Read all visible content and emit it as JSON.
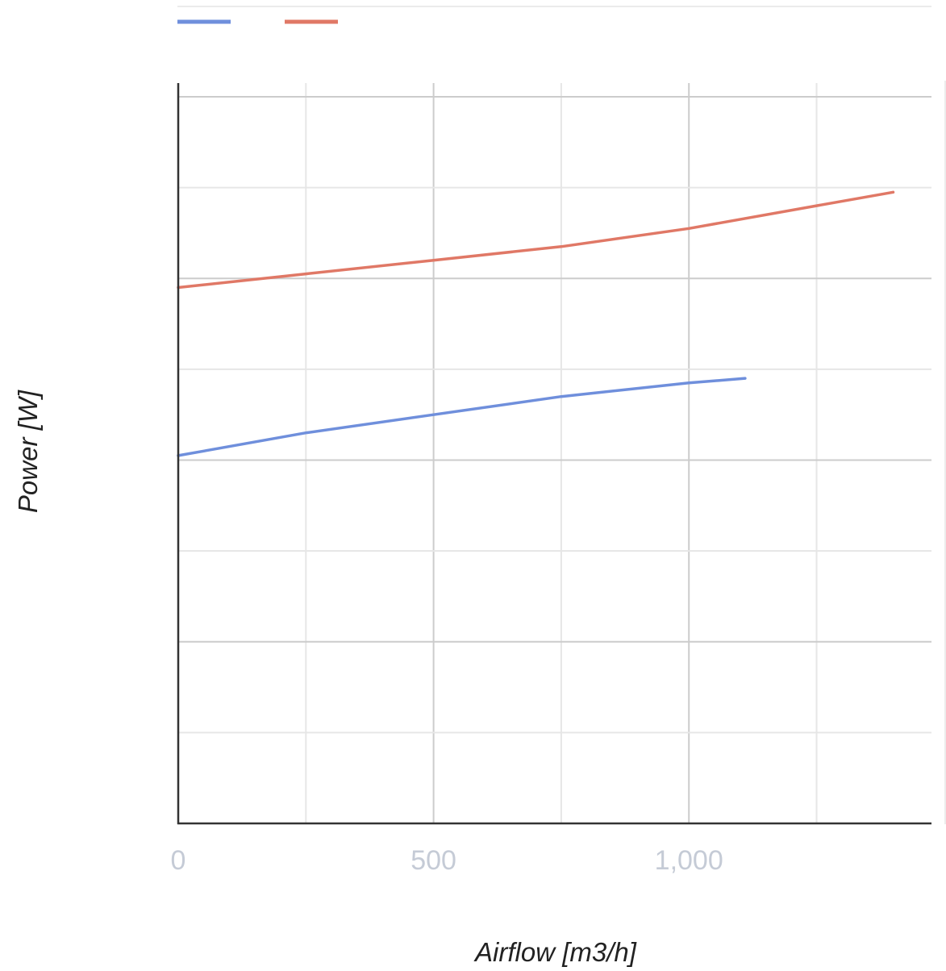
{
  "chart_data": {
    "type": "line",
    "xlabel": "Airflow [m3/h]",
    "ylabel": "Power [W]",
    "xlim": [
      0,
      1475
    ],
    "ylim": [
      0,
      8
    ],
    "x_ticks": [
      {
        "value": 0,
        "label": "0"
      },
      {
        "value": 500,
        "label": "500"
      },
      {
        "value": 1000,
        "label": "1,000"
      }
    ],
    "x_gridlines": [
      0,
      250,
      500,
      750,
      1000,
      1250
    ],
    "x_major_gridlines": [
      0,
      500,
      1000
    ],
    "y_gridlines": [
      0,
      1,
      2,
      3,
      4,
      5,
      6,
      7,
      8
    ],
    "y_major_gridlines": [
      0,
      2,
      4,
      6,
      8
    ],
    "grid": true,
    "legend": "top",
    "series": [
      {
        "color": "#6f8fdc",
        "x": [
          0,
          250,
          500,
          750,
          1000,
          1110
        ],
        "y": [
          4.05,
          4.3,
          4.5,
          4.7,
          4.85,
          4.9
        ]
      },
      {
        "color": "#e07866",
        "x": [
          0,
          250,
          500,
          750,
          1000,
          1250,
          1400
        ],
        "y": [
          5.9,
          6.05,
          6.2,
          6.35,
          6.55,
          6.8,
          6.95
        ]
      }
    ]
  }
}
